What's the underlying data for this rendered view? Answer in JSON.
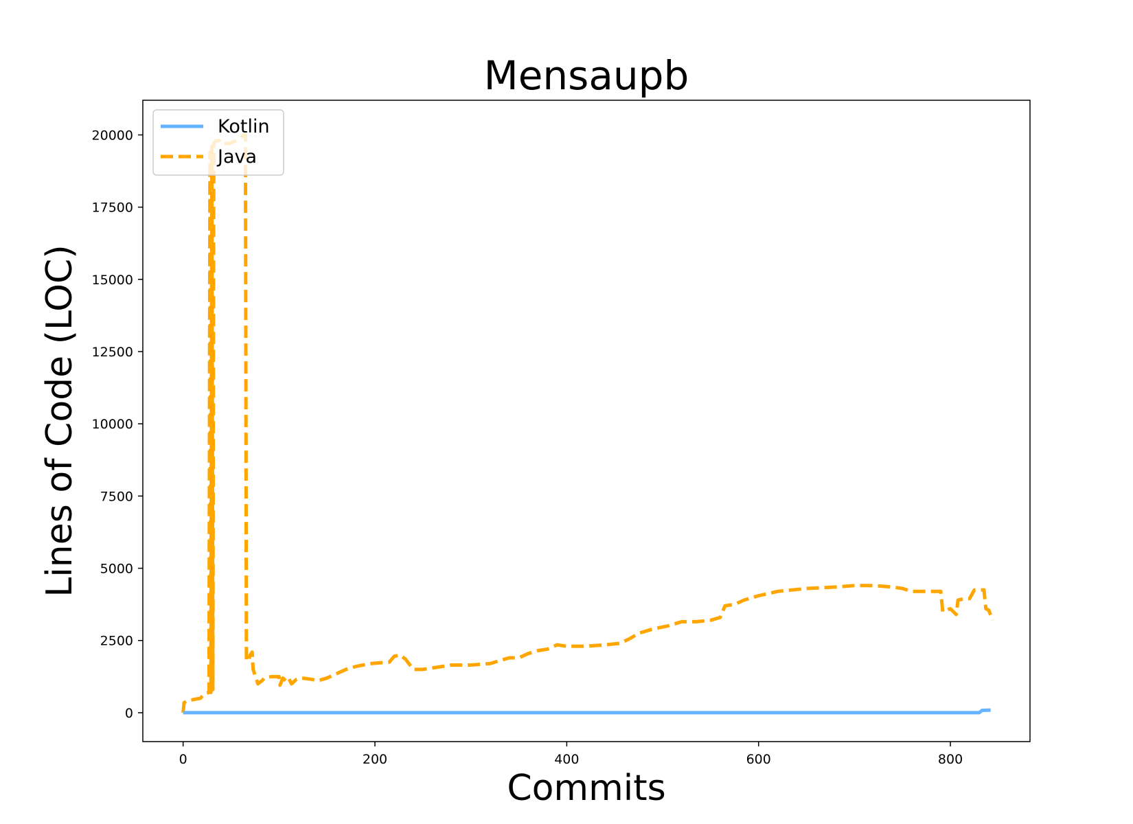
{
  "chart_data": {
    "type": "line",
    "title": "Mensaupb",
    "xlabel": "Commits",
    "ylabel": "Lines of Code (LOC)",
    "xlim": [
      -42,
      883
    ],
    "ylim": [
      -1000,
      21200
    ],
    "xticks": [
      0,
      200,
      400,
      600,
      800
    ],
    "xtick_labels": [
      "0",
      "200",
      "400",
      "600",
      "800"
    ],
    "yticks": [
      0,
      2500,
      5000,
      7500,
      10000,
      12500,
      15000,
      17500,
      20000
    ],
    "ytick_labels": [
      "0",
      "2500",
      "5000",
      "7500",
      "10000",
      "12500",
      "15000",
      "17500",
      "20000"
    ],
    "grid": false,
    "legend_position": "top-left",
    "series": [
      {
        "name": "Kotlin",
        "color": "#66b3ff",
        "style": "solid",
        "points": [
          [
            0,
            0
          ],
          [
            830,
            0
          ],
          [
            833,
            80
          ],
          [
            842,
            90
          ]
        ]
      },
      {
        "name": "Java",
        "color": "#ffa500",
        "style": "dashed",
        "points": [
          [
            0,
            0
          ],
          [
            1,
            350
          ],
          [
            4,
            400
          ],
          [
            10,
            450
          ],
          [
            18,
            500
          ],
          [
            22,
            650
          ],
          [
            27,
            700
          ],
          [
            28,
            19400
          ],
          [
            29,
            700
          ],
          [
            30,
            19600
          ],
          [
            31,
            800
          ],
          [
            32,
            19700
          ],
          [
            34,
            19800
          ],
          [
            38,
            19800
          ],
          [
            40,
            19700
          ],
          [
            48,
            19700
          ],
          [
            55,
            19800
          ],
          [
            60,
            19900
          ],
          [
            63,
            20000
          ],
          [
            65,
            20000
          ],
          [
            66,
            1800
          ],
          [
            68,
            1800
          ],
          [
            70,
            2000
          ],
          [
            72,
            2100
          ],
          [
            73,
            1500
          ],
          [
            76,
            1200
          ],
          [
            78,
            1000
          ],
          [
            82,
            1100
          ],
          [
            85,
            1200
          ],
          [
            92,
            1250
          ],
          [
            100,
            1250
          ],
          [
            101,
            950
          ],
          [
            104,
            1200
          ],
          [
            107,
            1100
          ],
          [
            110,
            1200
          ],
          [
            113,
            1000
          ],
          [
            118,
            1150
          ],
          [
            124,
            1200
          ],
          [
            135,
            1150
          ],
          [
            140,
            1100
          ],
          [
            150,
            1200
          ],
          [
            160,
            1350
          ],
          [
            170,
            1500
          ],
          [
            180,
            1600
          ],
          [
            195,
            1700
          ],
          [
            215,
            1750
          ],
          [
            220,
            1950
          ],
          [
            226,
            2000
          ],
          [
            232,
            1850
          ],
          [
            240,
            1500
          ],
          [
            250,
            1500
          ],
          [
            260,
            1550
          ],
          [
            270,
            1600
          ],
          [
            280,
            1650
          ],
          [
            300,
            1650
          ],
          [
            320,
            1700
          ],
          [
            340,
            1900
          ],
          [
            350,
            1900
          ],
          [
            360,
            2050
          ],
          [
            370,
            2150
          ],
          [
            380,
            2200
          ],
          [
            390,
            2350
          ],
          [
            400,
            2300
          ],
          [
            420,
            2300
          ],
          [
            440,
            2350
          ],
          [
            455,
            2400
          ],
          [
            465,
            2550
          ],
          [
            475,
            2750
          ],
          [
            490,
            2900
          ],
          [
            505,
            3000
          ],
          [
            520,
            3150
          ],
          [
            535,
            3150
          ],
          [
            550,
            3200
          ],
          [
            560,
            3300
          ],
          [
            565,
            3700
          ],
          [
            575,
            3750
          ],
          [
            585,
            3900
          ],
          [
            600,
            4050
          ],
          [
            620,
            4200
          ],
          [
            650,
            4300
          ],
          [
            680,
            4350
          ],
          [
            700,
            4400
          ],
          [
            720,
            4400
          ],
          [
            740,
            4350
          ],
          [
            750,
            4300
          ],
          [
            760,
            4200
          ],
          [
            790,
            4200
          ],
          [
            792,
            3500
          ],
          [
            800,
            3600
          ],
          [
            806,
            3400
          ],
          [
            808,
            3900
          ],
          [
            815,
            3950
          ],
          [
            820,
            3950
          ],
          [
            825,
            4250
          ],
          [
            835,
            4250
          ],
          [
            837,
            3600
          ],
          [
            840,
            3550
          ],
          [
            844,
            3200
          ]
        ]
      }
    ]
  }
}
